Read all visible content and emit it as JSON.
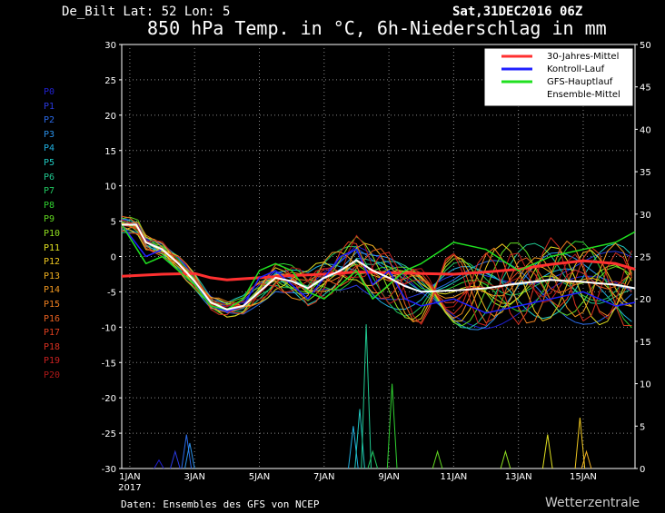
{
  "header": {
    "station": "De_Bilt   Lat: 52 Lon: 5",
    "datetime": "Sat,31DEC2016 06Z",
    "title": "850 hPa Temp. in °C, 6h-Niederschlag in mm"
  },
  "footer": {
    "source": "Daten: Ensembles des GFS von NCEP",
    "brand": "Wetterzentrale"
  },
  "members": [
    {
      "label": "P0",
      "color": "#2020d0"
    },
    {
      "label": "P1",
      "color": "#2a3ae0"
    },
    {
      "label": "P2",
      "color": "#2a6ae8"
    },
    {
      "label": "P3",
      "color": "#2a90e8"
    },
    {
      "label": "P4",
      "color": "#20b0e0"
    },
    {
      "label": "P5",
      "color": "#20c8c0"
    },
    {
      "label": "P6",
      "color": "#20c890"
    },
    {
      "label": "P7",
      "color": "#20c860"
    },
    {
      "label": "P8",
      "color": "#30d030"
    },
    {
      "label": "P9",
      "color": "#60d820"
    },
    {
      "label": "P10",
      "color": "#90e020"
    },
    {
      "label": "P11",
      "color": "#e0e020"
    },
    {
      "label": "P12",
      "color": "#f0c820"
    },
    {
      "label": "P13",
      "color": "#f0b020"
    },
    {
      "label": "P14",
      "color": "#f09820"
    },
    {
      "label": "P15",
      "color": "#f08020"
    },
    {
      "label": "P16",
      "color": "#e86020"
    },
    {
      "label": "P17",
      "color": "#e04020"
    },
    {
      "label": "P18",
      "color": "#d83020"
    },
    {
      "label": "P19",
      "color": "#c82020"
    },
    {
      "label": "P20",
      "color": "#b01818"
    }
  ],
  "chart_data": {
    "type": "line",
    "x_ticks": [
      "1JAN",
      "3JAN",
      "5JAN",
      "7JAN",
      "9JAN",
      "11JAN",
      "13JAN",
      "15JAN"
    ],
    "x_year_label": "2017",
    "x_range_days": [
      -0.25,
      15.6
    ],
    "y_left": {
      "range": [
        -30,
        30
      ],
      "ticks": [
        30,
        25,
        20,
        15,
        10,
        5,
        0,
        -5,
        -10,
        -15,
        -20,
        -25,
        -30
      ],
      "unit": "°C"
    },
    "y_right": {
      "range": [
        0,
        50
      ],
      "ticks": [
        50,
        45,
        40,
        35,
        30,
        25,
        20,
        15,
        10,
        5,
        0
      ],
      "unit": "mm"
    },
    "grid": true,
    "legend_position": "top-right",
    "legend": [
      {
        "label": "30-Jahres-Mittel",
        "color": "#ff3030"
      },
      {
        "label": "Kontroll-Lauf",
        "color": "#2020ff"
      },
      {
        "label": "GFS-Hauptlauf",
        "color": "#20e020"
      },
      {
        "label": "Ensemble-Mittel",
        "color": "#ffffff"
      }
    ],
    "climatology_30yr": {
      "x": [
        -0.25,
        1,
        2,
        2.5,
        3,
        4,
        5,
        6,
        7,
        8,
        9,
        10,
        11,
        12,
        13,
        14,
        15,
        15.6
      ],
      "y": [
        -2.8,
        -2.5,
        -2.4,
        -3,
        -3.3,
        -3,
        -2.7,
        -2.5,
        -2.2,
        -2.3,
        -2.4,
        -2.5,
        -2.2,
        -1.8,
        -1.1,
        -0.6,
        -1.0,
        -1.8
      ]
    },
    "ensemble_mean": {
      "x": [
        -0.25,
        0.2,
        0.5,
        1,
        1.5,
        2,
        2.5,
        3,
        3.5,
        4,
        4.5,
        5,
        5.5,
        6,
        6.5,
        7,
        7.5,
        8,
        8.5,
        9,
        10,
        11,
        12,
        13,
        14,
        15,
        15.6
      ],
      "y": [
        4.5,
        4.5,
        2,
        1,
        -1,
        -3.5,
        -6.5,
        -7.5,
        -7,
        -5,
        -3,
        -3.5,
        -4.5,
        -3,
        -2,
        -0.5,
        -2,
        -3,
        -4.2,
        -5,
        -4.8,
        -4.5,
        -3.8,
        -3.3,
        -3.6,
        -4.0,
        -4.5
      ]
    },
    "control_run": {
      "x": [
        -0.25,
        0.5,
        1,
        1.5,
        2,
        2.5,
        3,
        3.5,
        4,
        4.5,
        5,
        5.5,
        6,
        6.5,
        7,
        7.5,
        8,
        8.5,
        9,
        10,
        11,
        12,
        13,
        14,
        15,
        15.6
      ],
      "y": [
        4.5,
        0,
        1,
        -1,
        -3.5,
        -7,
        -7.8,
        -7,
        -3,
        -2,
        -4,
        -6,
        -3,
        0,
        1,
        -4,
        -2,
        -6,
        -7,
        -6,
        -8,
        -7,
        -6,
        -5,
        -7,
        -6.5
      ]
    },
    "gfs_main_run": {
      "x": [
        -0.25,
        0.5,
        1,
        1.5,
        2,
        2.5,
        3,
        3.5,
        4,
        4.5,
        5,
        5.5,
        6,
        6.5,
        7,
        7.5,
        8,
        8.5,
        9,
        10,
        11,
        12,
        13,
        14,
        15,
        15.6
      ],
      "y": [
        4.5,
        -1,
        0,
        -2,
        -4,
        -7,
        -7.5,
        -6,
        -2,
        -1,
        -2,
        -5,
        -6,
        -4,
        -2,
        -6,
        -4,
        -2,
        -1,
        2,
        1,
        -2,
        0,
        1,
        2,
        3.5
      ]
    },
    "precip_mm": {
      "x": [
        0.9,
        1.4,
        1.75,
        1.85,
        6.9,
        7.1,
        7.3,
        7.5,
        8.1,
        9.5,
        11.6,
        12.9,
        13.9,
        14.1
      ],
      "y": [
        1,
        2,
        4,
        3,
        5,
        7,
        17,
        2,
        10,
        2,
        2,
        4,
        6,
        2
      ]
    }
  }
}
